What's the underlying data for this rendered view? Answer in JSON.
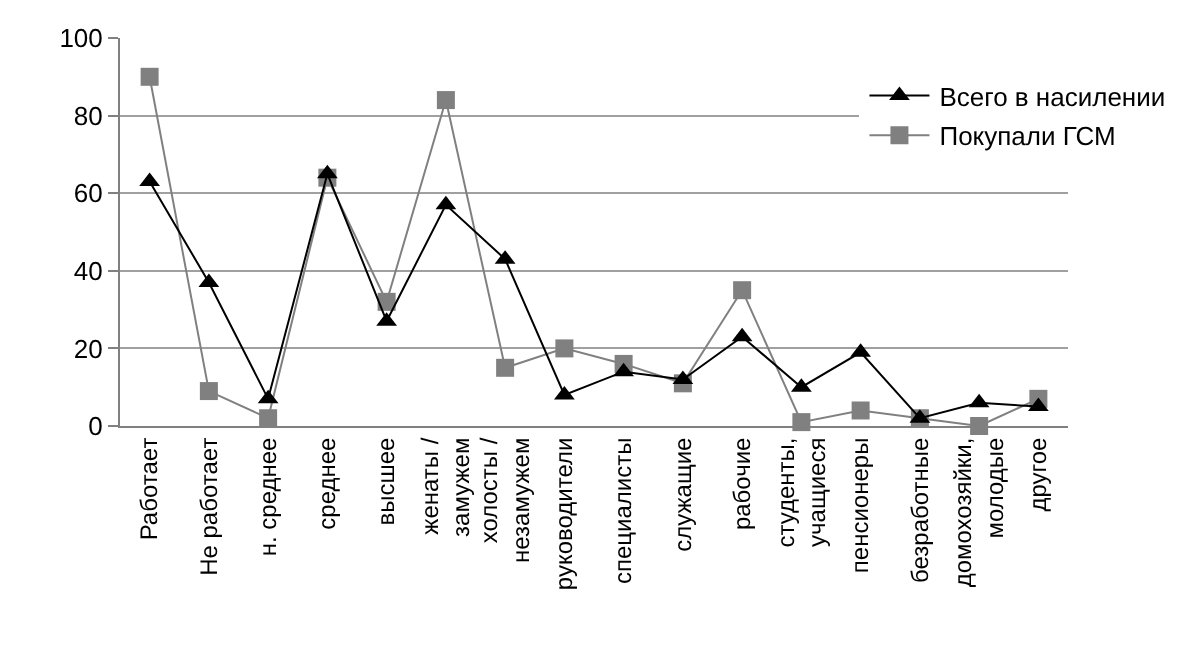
{
  "chart_data": {
    "type": "line",
    "categories": [
      "Работает",
      "Не работает",
      "н. среднее",
      "среднее",
      "высшее",
      "женаты / замужем",
      "холосты / незамужем",
      "руководители",
      "специалисты",
      "служащие",
      "рабочие",
      "студенты, учащиеся",
      "пенсионеры",
      "безработные",
      "домохозяйки, молодые",
      "другое"
    ],
    "series": [
      {
        "name": "Всего в насилении",
        "color": "#000000",
        "marker": "triangle",
        "values": [
          63,
          37,
          7,
          65,
          27,
          57,
          43,
          8,
          14,
          12,
          23,
          10,
          19,
          2,
          6,
          5
        ]
      },
      {
        "name": "Покупали ГСМ",
        "color": "#808080",
        "marker": "square",
        "values": [
          90,
          9,
          2,
          64,
          32,
          84,
          15,
          20,
          16,
          11,
          35,
          1,
          4,
          2,
          0,
          7
        ]
      }
    ],
    "ylim": [
      0,
      100
    ],
    "yticks": [
      0,
      20,
      40,
      60,
      80,
      100
    ],
    "grid": "y",
    "legend": "right"
  }
}
